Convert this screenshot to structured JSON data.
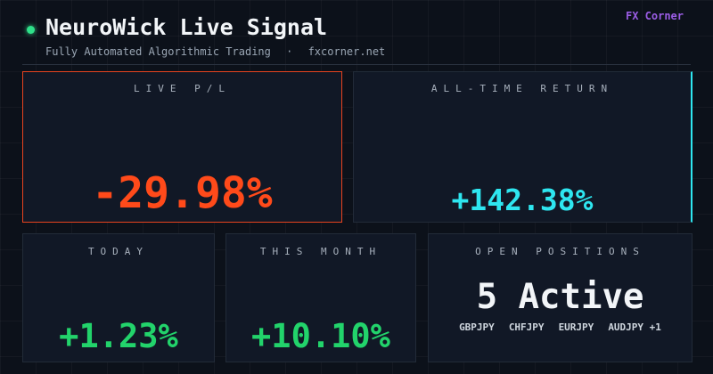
{
  "header": {
    "title": "NeuroWick Live Signal",
    "subtitle": "Fully Automated Algorithmic Trading",
    "separator": "·",
    "site": "fxcorner.net",
    "brand": "FX Corner"
  },
  "cards": [
    {
      "label": "LIVE P/L",
      "value": "-29.98%"
    },
    {
      "label": "ALL-TIME RETURN",
      "value": "+142.38%"
    },
    {
      "label": "TODAY",
      "value": "+1.23%"
    },
    {
      "label": "THIS MONTH",
      "value": "+10.10%"
    },
    {
      "label": "OPEN POSITIONS",
      "value": "5 Active",
      "pairs": [
        "GBPJPY",
        "CHFJPY",
        "EURJPY",
        "AUDJPY +1"
      ]
    }
  ]
}
